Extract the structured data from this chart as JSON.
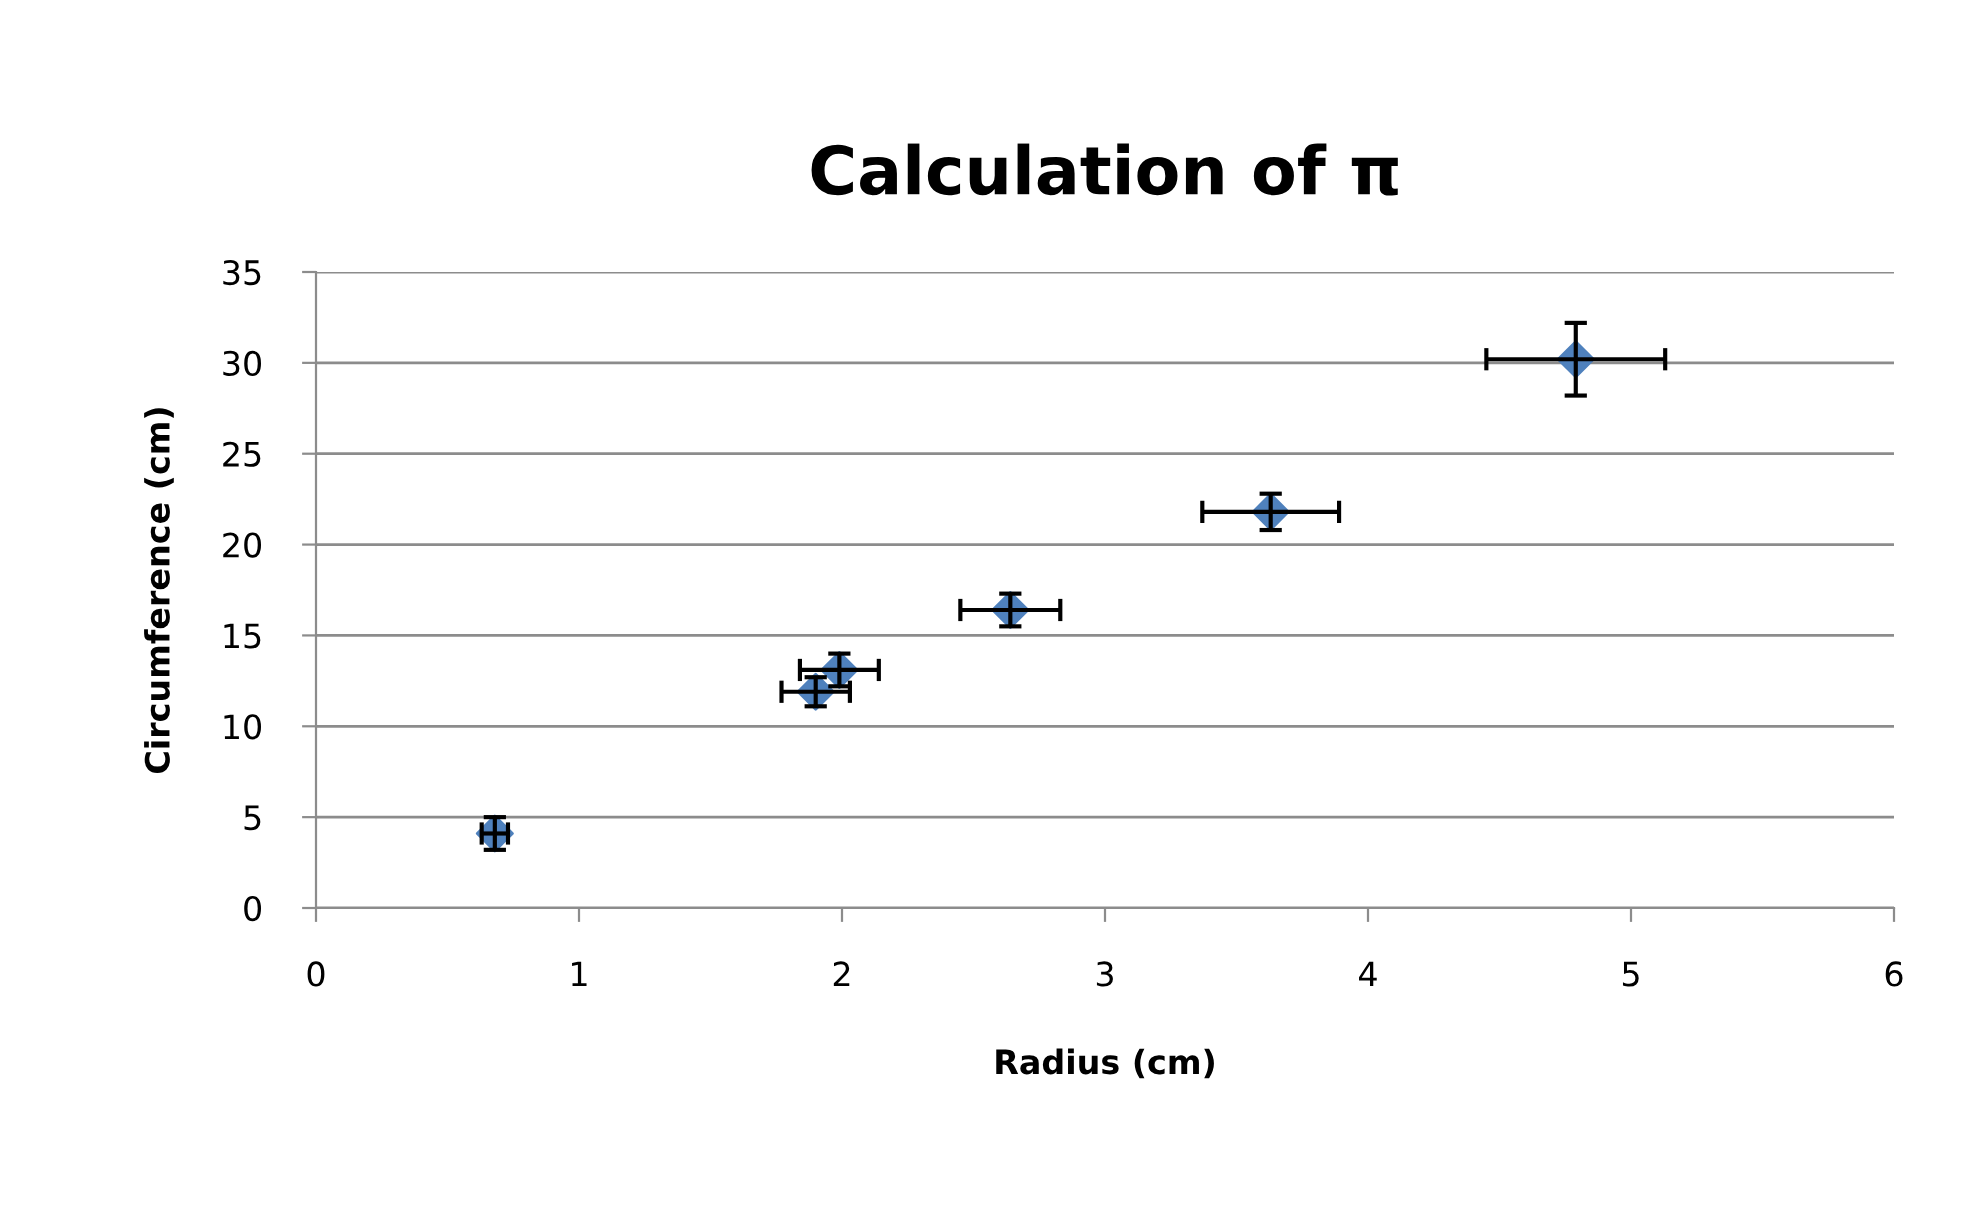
{
  "chart_data": {
    "type": "scatter",
    "title": "Calculation of π",
    "xlabel": "Radius (cm)",
    "ylabel": "Circumference (cm)",
    "x": [
      0.68,
      1.9,
      1.99,
      2.64,
      3.63,
      4.79
    ],
    "series": [
      {
        "color": "#4f81bd",
        "values": [
          4.1,
          11.9,
          13.1,
          16.4,
          21.8,
          30.2
        ],
        "errors": [
          0.9,
          0.8,
          0.9,
          0.9,
          1.0,
          2.0
        ],
        "xerrors": [
          0.05,
          0.13,
          0.15,
          0.19,
          0.26,
          0.34
        ]
      }
    ],
    "marker": "diamond",
    "xlim": [
      0,
      6
    ],
    "ylim": [
      0,
      35
    ],
    "xticks": [
      0,
      1,
      2,
      3,
      4,
      5,
      6
    ],
    "yticks": [
      0,
      5,
      10,
      15,
      20,
      25,
      30,
      35
    ],
    "grid": "y",
    "legend": false
  }
}
